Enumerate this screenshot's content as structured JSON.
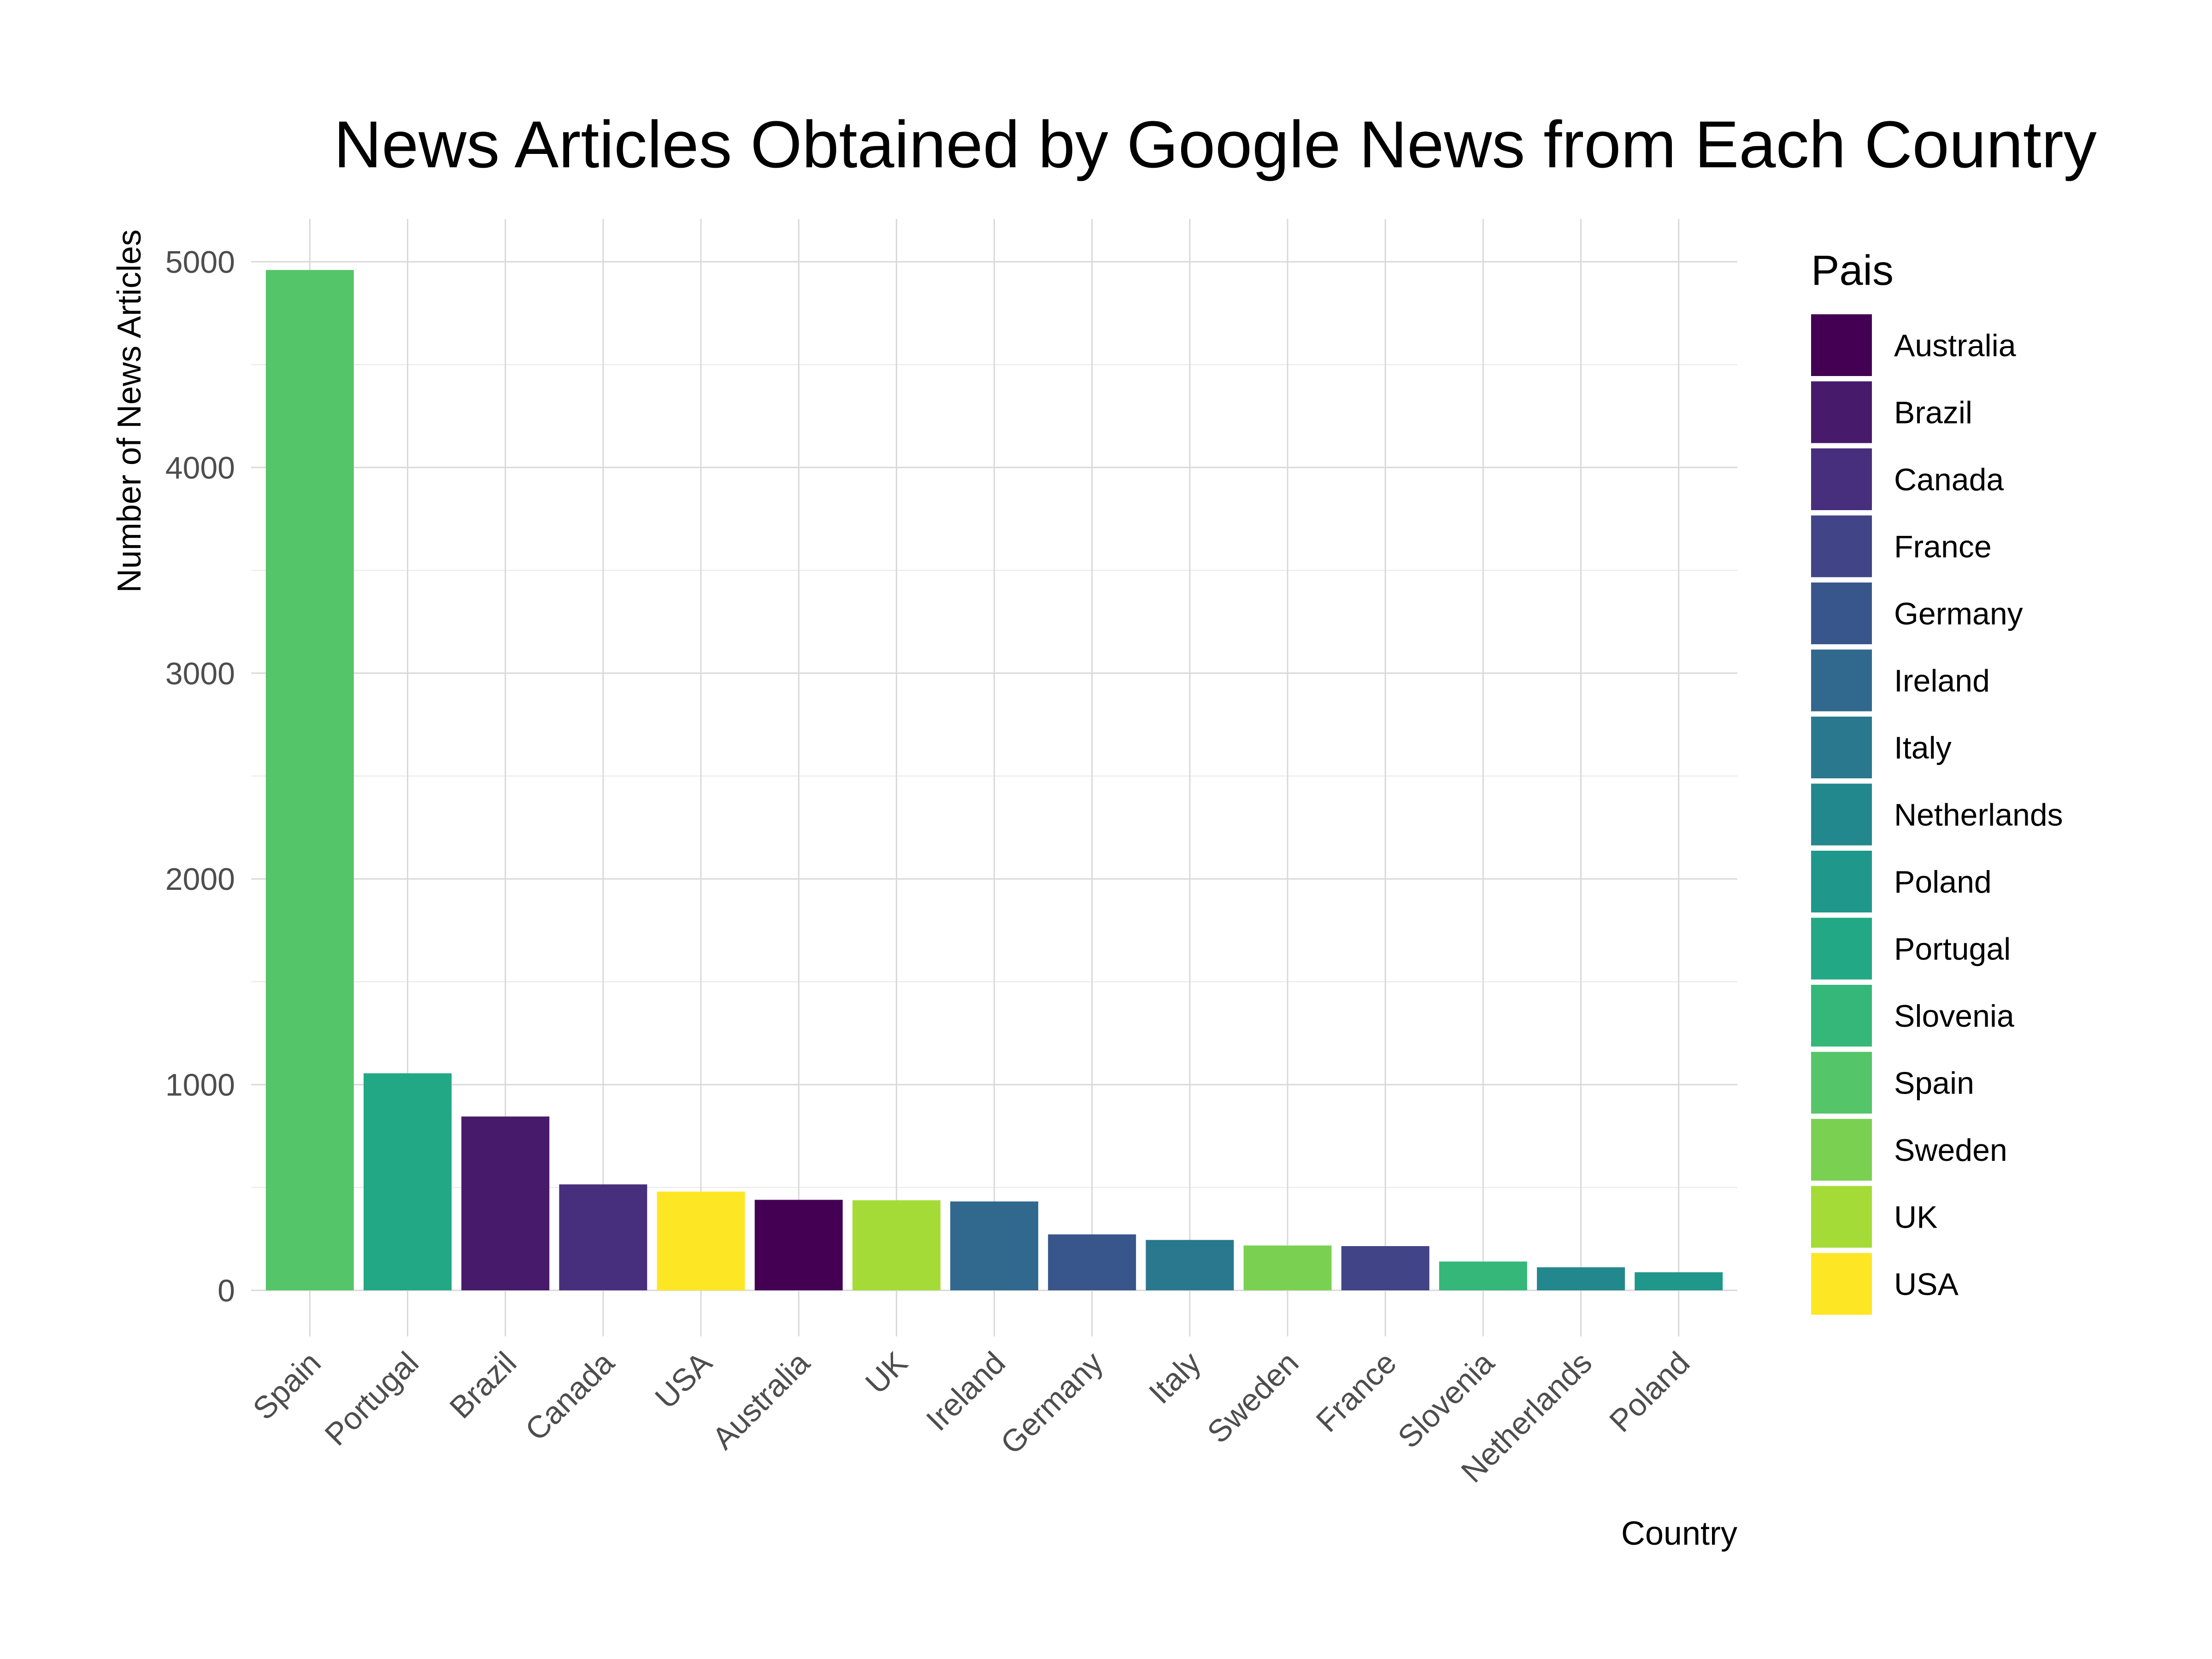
{
  "chart_data": {
    "type": "bar",
    "title": "News Articles Obtained by Google News from Each Country",
    "xlabel": "Country",
    "ylabel": "Number of News Articles",
    "ylim": [
      0,
      5200
    ],
    "yticks": [
      0,
      1000,
      2000,
      3000,
      4000,
      5000
    ],
    "grid": true,
    "legend_position": "right",
    "categories": [
      "Spain",
      "Portugal",
      "Brazil",
      "Canada",
      "USA",
      "Australia",
      "UK",
      "Ireland",
      "Germany",
      "Italy",
      "Sweden",
      "France",
      "Slovenia",
      "Netherlands",
      "Poland"
    ],
    "values": [
      4960,
      1055,
      845,
      515,
      480,
      440,
      438,
      432,
      272,
      245,
      218,
      215,
      140,
      112,
      88
    ],
    "legend": {
      "title": "Pais",
      "entries": [
        {
          "label": "Australia",
          "color": "#440154"
        },
        {
          "label": "Brazil",
          "color": "#481a6c"
        },
        {
          "label": "Canada",
          "color": "#472f7d"
        },
        {
          "label": "France",
          "color": "#414487"
        },
        {
          "label": "Germany",
          "color": "#39568c"
        },
        {
          "label": "Ireland",
          "color": "#31688e"
        },
        {
          "label": "Italy",
          "color": "#2a788e"
        },
        {
          "label": "Netherlands",
          "color": "#23888e"
        },
        {
          "label": "Poland",
          "color": "#1f988b"
        },
        {
          "label": "Portugal",
          "color": "#22a884"
        },
        {
          "label": "Slovenia",
          "color": "#35b779"
        },
        {
          "label": "Spain",
          "color": "#54c568"
        },
        {
          "label": "Sweden",
          "color": "#7ad151"
        },
        {
          "label": "UK",
          "color": "#a5db36"
        },
        {
          "label": "USA",
          "color": "#fde725"
        }
      ]
    }
  }
}
